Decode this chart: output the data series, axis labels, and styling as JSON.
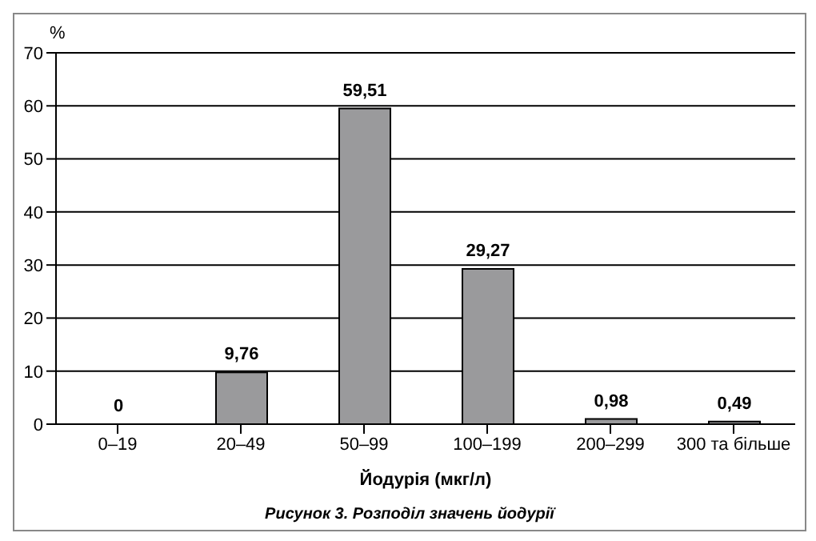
{
  "chart_data": {
    "type": "bar",
    "categories": [
      "0–19",
      "20–49",
      "50–99",
      "100–199",
      "200–299",
      "300 та більше"
    ],
    "values": [
      0,
      9.76,
      59.51,
      29.27,
      0.98,
      0.49
    ],
    "value_labels": [
      "0",
      "9,76",
      "59,51",
      "29,27",
      "0,98",
      "0,49"
    ],
    "color": "#9a9a9c",
    "ylabel": "%",
    "xlabel": "Йодурія (мкг/л)",
    "ylim": [
      0,
      70
    ],
    "yticks": [
      0,
      10,
      20,
      30,
      40,
      50,
      60,
      70
    ],
    "grid": "y",
    "annotations": [
      "Рисунок 3. Розподіл значень йодурії"
    ]
  }
}
